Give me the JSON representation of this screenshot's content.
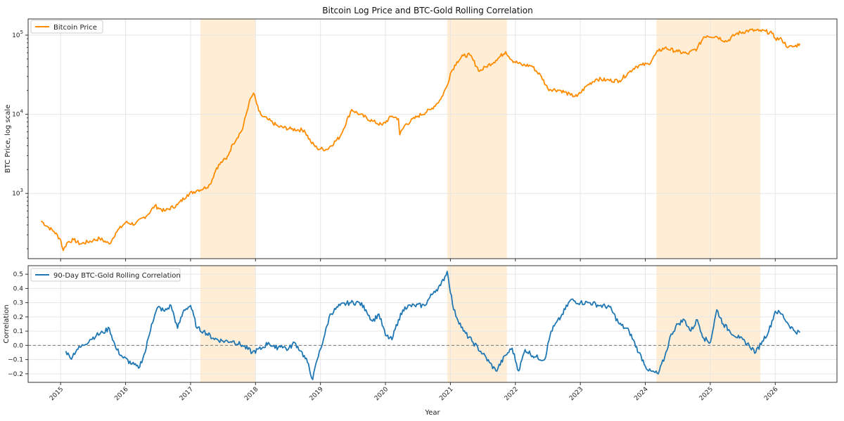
{
  "chart_data": [
    {
      "type": "line",
      "title": "Bitcoin Log Price and BTC-Gold Rolling Correlation",
      "ylabel": "BTC Price, log scale",
      "yscale": "log",
      "ylim": [
        150,
        160000
      ],
      "xlim": [
        2014.5,
        2026.95
      ],
      "ytick_labels": [
        {
          "value": 1000,
          "base": "10",
          "exp": "3"
        },
        {
          "value": 10000,
          "base": "10",
          "exp": "4"
        },
        {
          "value": 100000,
          "base": "10",
          "exp": "5"
        }
      ],
      "grid": true,
      "legend": "top-left",
      "series": [
        {
          "name": "Bitcoin Price",
          "color": "#ff8c00",
          "x": [
            2014.7,
            2014.8,
            2014.9,
            2015.0,
            2015.04,
            2015.1,
            2015.2,
            2015.3,
            2015.5,
            2015.6,
            2015.75,
            2015.85,
            2016.0,
            2016.15,
            2016.35,
            2016.45,
            2016.5,
            2016.6,
            2016.8,
            2016.95,
            2017.1,
            2017.2,
            2017.3,
            2017.4,
            2017.5,
            2017.55,
            2017.65,
            2017.8,
            2017.9,
            2017.97,
            2018.05,
            2018.1,
            2018.2,
            2018.35,
            2018.55,
            2018.75,
            2018.85,
            2018.95,
            2019.1,
            2019.3,
            2019.48,
            2019.6,
            2019.8,
            2019.95,
            2020.1,
            2020.2,
            2020.22,
            2020.3,
            2020.5,
            2020.7,
            2020.85,
            2020.95,
            2021.0,
            2021.1,
            2021.2,
            2021.3,
            2021.45,
            2021.55,
            2021.7,
            2021.85,
            2021.95,
            2022.1,
            2022.25,
            2022.4,
            2022.5,
            2022.7,
            2022.85,
            2022.95,
            2023.1,
            2023.25,
            2023.4,
            2023.6,
            2023.75,
            2023.85,
            2023.95,
            2024.05,
            2024.2,
            2024.3,
            2024.5,
            2024.65,
            2024.8,
            2024.9,
            2024.95,
            2025.1,
            2025.25,
            2025.4,
            2025.6,
            2025.75,
            2025.85,
            2025.95,
            2026.0,
            2026.1,
            2026.2,
            2026.3,
            2026.38
          ],
          "values": [
            450,
            380,
            330,
            260,
            190,
            240,
            260,
            230,
            255,
            270,
            230,
            320,
            430,
            410,
            550,
            700,
            660,
            600,
            720,
            960,
            1100,
            1150,
            1300,
            2100,
            2600,
            2700,
            4200,
            6500,
            14000,
            18500,
            11000,
            9500,
            8500,
            7000,
            6500,
            6300,
            4500,
            3700,
            3600,
            5200,
            11500,
            10000,
            8200,
            7300,
            9500,
            8800,
            5500,
            7300,
            9500,
            11500,
            15500,
            23000,
            33000,
            46000,
            55000,
            56000,
            35000,
            40000,
            48000,
            62000,
            48000,
            42000,
            41000,
            30000,
            21000,
            20000,
            17500,
            16800,
            23000,
            28000,
            27000,
            26500,
            34000,
            40000,
            42000,
            43000,
            63000,
            69000,
            62000,
            58000,
            68000,
            95000,
            98000,
            96000,
            83000,
            104000,
            115000,
            113000,
            112000,
            105000,
            91000,
            88000,
            70000,
            72000,
            78000
          ]
        }
      ]
    },
    {
      "type": "line",
      "ylabel": "Correlation",
      "xlabel": "Year",
      "ylim": [
        -0.26,
        0.56
      ],
      "xlim": [
        2014.5,
        2026.95
      ],
      "yticks": [
        -0.2,
        -0.1,
        0.0,
        0.1,
        0.2,
        0.3,
        0.4,
        0.5
      ],
      "ytick_labels": [
        "−0.2",
        "−0.1",
        "0.0",
        "0.1",
        "0.2",
        "0.3",
        "0.4",
        "0.5"
      ],
      "xticks": [
        2015,
        2016,
        2017,
        2018,
        2019,
        2020,
        2021,
        2022,
        2023,
        2024,
        2025,
        2026
      ],
      "xtick_labels": [
        "2015",
        "2016",
        "2017",
        "2018",
        "2019",
        "2020",
        "2021",
        "2022",
        "2023",
        "2024",
        "2025",
        "2026"
      ],
      "reference_line": 0,
      "grid": true,
      "legend": "top-left",
      "series": [
        {
          "name": "90-Day BTC-Gold Rolling Correlation",
          "color": "#1f77b4",
          "x": [
            2015.08,
            2015.15,
            2015.25,
            2015.35,
            2015.45,
            2015.55,
            2015.65,
            2015.75,
            2015.85,
            2015.95,
            2016.1,
            2016.2,
            2016.3,
            2016.4,
            2016.5,
            2016.6,
            2016.7,
            2016.8,
            2016.9,
            2017.0,
            2017.1,
            2017.2,
            2017.35,
            2017.5,
            2017.65,
            2017.8,
            2017.95,
            2018.1,
            2018.2,
            2018.3,
            2018.4,
            2018.5,
            2018.6,
            2018.7,
            2018.8,
            2018.88,
            2018.95,
            2019.05,
            2019.15,
            2019.3,
            2019.45,
            2019.6,
            2019.7,
            2019.8,
            2019.9,
            2020.0,
            2020.1,
            2020.2,
            2020.3,
            2020.45,
            2020.6,
            2020.75,
            2020.85,
            2020.95,
            2021.05,
            2021.2,
            2021.35,
            2021.5,
            2021.6,
            2021.7,
            2021.85,
            2021.95,
            2022.05,
            2022.15,
            2022.3,
            2022.45,
            2022.55,
            2022.7,
            2022.85,
            2023.0,
            2023.15,
            2023.3,
            2023.45,
            2023.6,
            2023.75,
            2023.9,
            2024.05,
            2024.2,
            2024.3,
            2024.4,
            2024.5,
            2024.6,
            2024.7,
            2024.8,
            2024.9,
            2025.0,
            2025.1,
            2025.2,
            2025.3,
            2025.45,
            2025.6,
            2025.7,
            2025.8,
            2025.9,
            2026.0,
            2026.1,
            2026.2,
            2026.3,
            2026.38
          ],
          "values": [
            -0.04,
            -0.09,
            -0.03,
            0.0,
            0.04,
            0.07,
            0.09,
            0.12,
            -0.02,
            -0.08,
            -0.13,
            -0.16,
            -0.05,
            0.15,
            0.27,
            0.24,
            0.28,
            0.12,
            0.25,
            0.28,
            0.12,
            0.1,
            0.05,
            0.03,
            0.03,
            0.0,
            -0.05,
            -0.02,
            0.02,
            -0.02,
            0.0,
            -0.03,
            0.02,
            -0.04,
            -0.12,
            -0.24,
            -0.1,
            0.05,
            0.22,
            0.28,
            0.3,
            0.3,
            0.25,
            0.17,
            0.22,
            0.07,
            0.04,
            0.18,
            0.27,
            0.28,
            0.28,
            0.38,
            0.42,
            0.52,
            0.25,
            0.1,
            0.02,
            -0.06,
            -0.12,
            -0.18,
            -0.07,
            -0.02,
            -0.18,
            -0.03,
            -0.08,
            -0.1,
            0.1,
            0.2,
            0.32,
            0.3,
            0.3,
            0.28,
            0.27,
            0.15,
            0.1,
            -0.05,
            -0.18,
            -0.2,
            -0.08,
            0.08,
            0.15,
            0.18,
            0.1,
            0.18,
            0.05,
            0.02,
            0.25,
            0.15,
            0.1,
            0.05,
            0.0,
            -0.05,
            0.03,
            0.1,
            0.24,
            0.22,
            0.15,
            0.1,
            0.09
          ]
        }
      ]
    }
  ],
  "shaded_periods": [
    [
      2017.15,
      2018.0
    ],
    [
      2020.95,
      2021.87
    ],
    [
      2024.17,
      2025.77
    ]
  ],
  "shade_color": "#ffeed5"
}
